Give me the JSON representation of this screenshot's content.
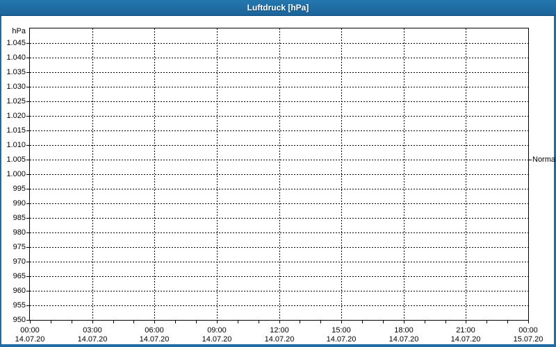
{
  "title": "Luftdruck [hPa]",
  "colors": {
    "titlebar_top": "#2477af",
    "titlebar_bottom": "#1b649a",
    "titlebar_edge": "#114e7c",
    "frame": "#1e6ca3",
    "title_text": "#ffffff",
    "plot_background": "#ffffff",
    "grid": "#000000",
    "label_text": "#000000"
  },
  "chart_data": {
    "type": "line",
    "title": "Luftdruck [hPa]",
    "ylabel_unit": "hPa",
    "grid": true,
    "grid_style": "dashed",
    "series": [],
    "ylim": [
      950,
      1050
    ],
    "y_ticks": [
      {
        "label": "1.045",
        "value": 1045
      },
      {
        "label": "1.040",
        "value": 1040
      },
      {
        "label": "1.035",
        "value": 1035
      },
      {
        "label": "1.030",
        "value": 1030
      },
      {
        "label": "1.025",
        "value": 1025
      },
      {
        "label": "1.020",
        "value": 1020
      },
      {
        "label": "1.015",
        "value": 1015
      },
      {
        "label": "1.010",
        "value": 1010
      },
      {
        "label": "1.005",
        "value": 1005
      },
      {
        "label": "1.000",
        "value": 1000
      },
      {
        "label": "995",
        "value": 995
      },
      {
        "label": "990",
        "value": 990
      },
      {
        "label": "985",
        "value": 985
      },
      {
        "label": "980",
        "value": 980
      },
      {
        "label": "975",
        "value": 975
      },
      {
        "label": "970",
        "value": 970
      },
      {
        "label": "965",
        "value": 965
      },
      {
        "label": "960",
        "value": 960
      },
      {
        "label": "955",
        "value": 955
      },
      {
        "label": "950",
        "value": 950
      }
    ],
    "xlim_hours": [
      0,
      24
    ],
    "x_minor_step_hours": 1,
    "x_ticks": [
      {
        "hour": 0,
        "time": "00:00",
        "date": "14.07.20"
      },
      {
        "hour": 3,
        "time": "03:00",
        "date": "14.07.20"
      },
      {
        "hour": 6,
        "time": "06:00",
        "date": "14.07.20"
      },
      {
        "hour": 9,
        "time": "09:00",
        "date": "14.07.20"
      },
      {
        "hour": 12,
        "time": "12:00",
        "date": "14.07.20"
      },
      {
        "hour": 15,
        "time": "15:00",
        "date": "14.07.20"
      },
      {
        "hour": 18,
        "time": "18:00",
        "date": "14.07.20"
      },
      {
        "hour": 21,
        "time": "21:00",
        "date": "14.07.20"
      },
      {
        "hour": 24,
        "time": "00:00",
        "date": "15.07.20"
      }
    ],
    "annotations": [
      {
        "label": "Normal",
        "value": 1005,
        "side": "right"
      }
    ]
  }
}
